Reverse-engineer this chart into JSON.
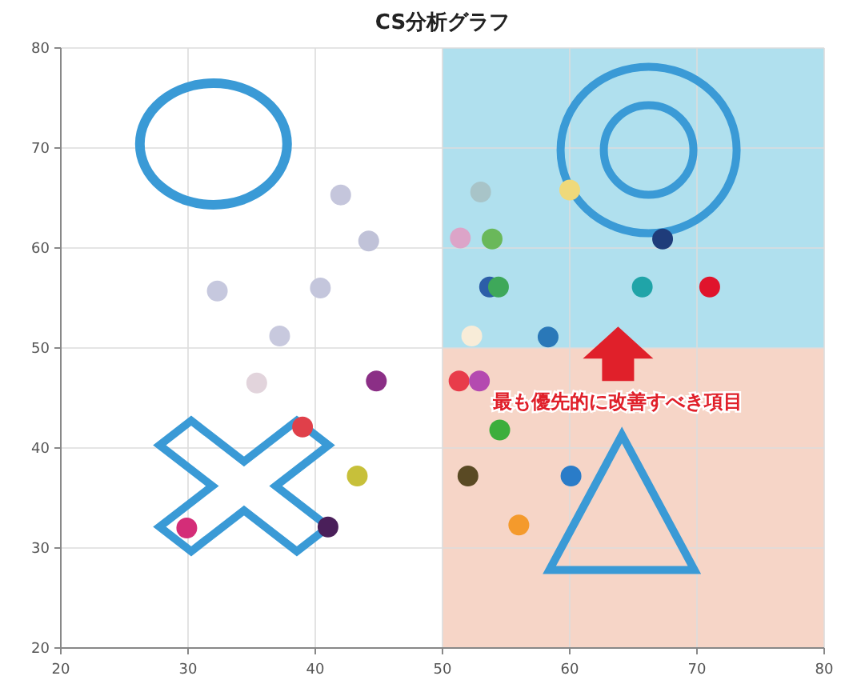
{
  "chart_data": {
    "type": "scatter",
    "title": "CS分析グラフ",
    "x": [
      42.0,
      44.2,
      32.3,
      40.4,
      37.2,
      35.4,
      44.8,
      39.0,
      43.3,
      41.0,
      29.9,
      53.0,
      60.0,
      51.4,
      53.9,
      67.3,
      53.7,
      54.4,
      65.7,
      71.0,
      52.3,
      58.3,
      51.3,
      52.9,
      54.5,
      52.0,
      60.1,
      56.0
    ],
    "values": [
      65.3,
      60.7,
      55.7,
      56.0,
      51.2,
      46.5,
      46.7,
      42.1,
      37.2,
      32.1,
      32.0,
      65.6,
      65.8,
      61.0,
      60.9,
      60.9,
      56.1,
      56.1,
      56.1,
      56.1,
      51.2,
      51.1,
      46.7,
      46.7,
      41.8,
      37.2,
      37.2,
      32.3
    ],
    "colors": [
      "#c5c6dc",
      "#c0c2d8",
      "#c6c8de",
      "#c4c6dc",
      "#c8c9de",
      "#e2d4dc",
      "#8b2f86",
      "#e0404a",
      "#c7c03a",
      "#4a1f5a",
      "#d42d78",
      "#a8c4c8",
      "#efd97a",
      "#dca4c8",
      "#6ab85a",
      "#1f3c7a",
      "#2c5ea8",
      "#3ea85a",
      "#20a4a8",
      "#e0142c",
      "#f8ecd8",
      "#2a78b8",
      "#e83c4a",
      "#b44ab0",
      "#3cae3c",
      "#5a4a24",
      "#2a7cc8",
      "#f49a2c"
    ],
    "xlim": [
      20,
      80
    ],
    "ylim": [
      20,
      80
    ],
    "xticks": [
      20,
      30,
      40,
      50,
      60,
      70,
      80
    ],
    "yticks": [
      20,
      30,
      40,
      50,
      60,
      70,
      80
    ],
    "grid": true,
    "marker": "circle",
    "bands": [
      {
        "axis": "x",
        "from": 50,
        "to": 80,
        "color": "#f6d5c7"
      },
      {
        "axis": "y",
        "from": 50,
        "to": 80,
        "color": "#b0e0ee"
      }
    ],
    "annotations": [
      "最も優先的に改善すべき項目"
    ]
  }
}
